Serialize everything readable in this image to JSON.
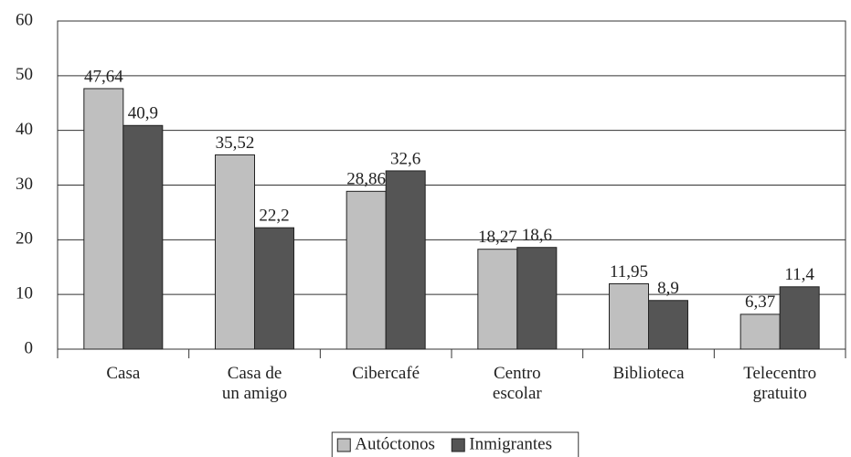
{
  "chart_data": {
    "type": "bar",
    "categories": [
      "Casa",
      "Casa de\nun amigo",
      "Cibercafé",
      "Centro\nescolar",
      "Biblioteca",
      "Telecentro\ngratuito"
    ],
    "series": [
      {
        "name": "Autóctonos",
        "color": "#bfbfbf",
        "values": [
          47.64,
          35.52,
          28.86,
          18.27,
          11.95,
          6.37
        ],
        "value_labels": [
          "47,64",
          "35,52",
          "28,86",
          "18,27",
          "11,95",
          "6,37"
        ]
      },
      {
        "name": "Inmigrantes",
        "color": "#555555",
        "values": [
          40.9,
          22.2,
          32.6,
          18.6,
          8.9,
          11.4
        ],
        "value_labels": [
          "40,9",
          "22,2",
          "32,6",
          "18,6",
          "8,9",
          "11,4"
        ]
      }
    ],
    "ylim": [
      0,
      60
    ],
    "yticks": [
      0,
      10,
      20,
      30,
      40,
      50,
      60
    ],
    "grid": true,
    "legend": "bottom"
  }
}
